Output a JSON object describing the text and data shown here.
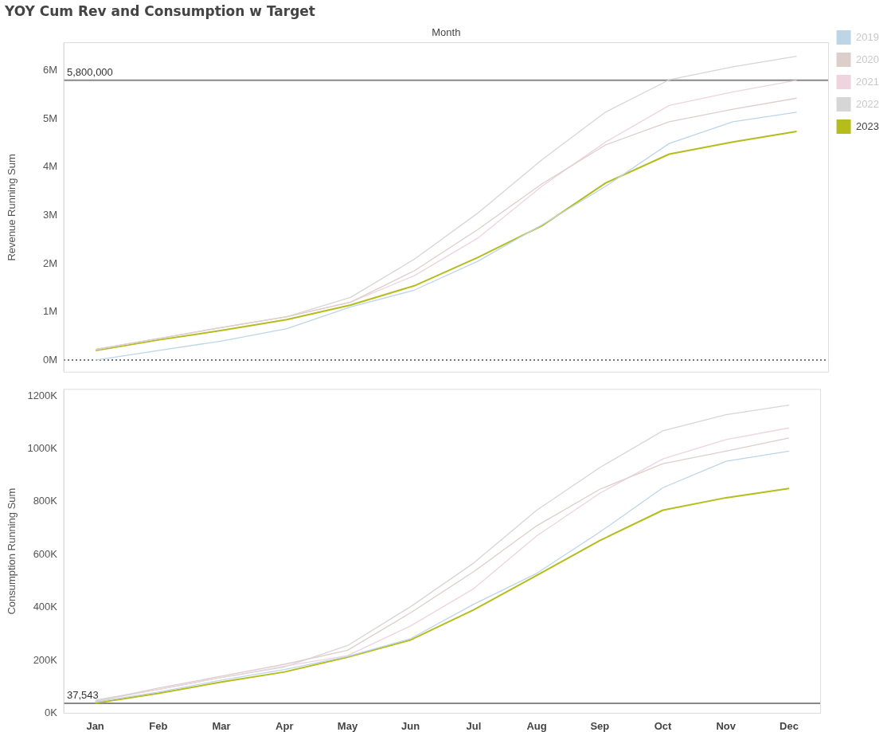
{
  "chart_data": [
    {
      "type": "line",
      "title": "YOY Cum Rev and Consumption w Target",
      "xlabel": "Month",
      "ylabel": "Revenue Running Sum",
      "categories": [
        null,
        null,
        null,
        null,
        null,
        null,
        null,
        null,
        null,
        null,
        null,
        null
      ],
      "series": [
        {
          "name": "2019",
          "color": "#bcd6e8",
          "values": [
            0,
            200000,
            400000,
            650000,
            1100000,
            1450000,
            2050000,
            2800000,
            3600000,
            4490000,
            4940000,
            5140000
          ]
        },
        {
          "name": "2020",
          "color": "#dccfcb",
          "values": [
            220000,
            450000,
            680000,
            900000,
            1200000,
            1850000,
            2710000,
            3650000,
            4460000,
            4940000,
            5200000,
            5430000
          ]
        },
        {
          "name": "2021",
          "color": "#efd3df",
          "values": [
            220000,
            450000,
            680000,
            900000,
            1200000,
            1750000,
            2530000,
            3600000,
            4520000,
            5280000,
            5560000,
            5800000
          ]
        },
        {
          "name": "2022",
          "color": "#d6d6d6",
          "values": [
            220000,
            450000,
            680000,
            900000,
            1300000,
            2090000,
            3050000,
            4150000,
            5140000,
            5810000,
            6080000,
            6300000
          ]
        },
        {
          "name": "2023",
          "color": "#b5bd1c",
          "values": [
            200000,
            420000,
            620000,
            840000,
            1140000,
            1540000,
            2130000,
            2780000,
            3670000,
            4270000,
            4520000,
            4740000
          ]
        }
      ],
      "ylim": [
        -250000,
        6580000
      ],
      "yticks": [
        {
          "value": 0,
          "label": "0M"
        },
        {
          "value": 1000000,
          "label": "1M"
        },
        {
          "value": 2000000,
          "label": "2M"
        },
        {
          "value": 3000000,
          "label": "3M"
        },
        {
          "value": 4000000,
          "label": "4M"
        },
        {
          "value": 5000000,
          "label": "5M"
        },
        {
          "value": 6000000,
          "label": "6M"
        }
      ],
      "ref_lines": [
        {
          "axis": "y",
          "value": 5800000,
          "label": "5,800,000",
          "color": "#888888",
          "line_style": "solid"
        },
        {
          "axis": "y",
          "value": 0,
          "label": null,
          "color": "#777777",
          "line_style": "dotted"
        }
      ],
      "legend": "top right",
      "tick_labels": "y",
      "marker": "none",
      "line_style": "solid"
    },
    {
      "type": "line",
      "ylabel": "Consumption Running Sum",
      "categories": [
        "Jan",
        "Feb",
        "Mar",
        "Apr",
        "May",
        "Jun",
        "Jul",
        "Aug",
        "Sep",
        "Oct",
        "Nov",
        "Dec"
      ],
      "series": [
        {
          "color": "#bcd6e8",
          "values": [
            42000,
            80000,
            125000,
            165000,
            215000,
            282000,
            412000,
            529000,
            685000,
            853000,
            953000,
            991000
          ]
        },
        {
          "color": "#dccfcb",
          "values": [
            45000,
            95000,
            140000,
            185000,
            238000,
            380000,
            535000,
            709000,
            847000,
            944000,
            991000,
            1041000
          ]
        },
        {
          "color": "#efd3df",
          "values": [
            45000,
            90000,
            135000,
            178000,
            218000,
            330000,
            471000,
            671000,
            832000,
            962000,
            1035000,
            1079000
          ]
        },
        {
          "color": "#d6d6d6",
          "values": [
            50000,
            90000,
            135000,
            175000,
            256000,
            403000,
            568000,
            768000,
            929000,
            1068000,
            1129000,
            1165000
          ]
        },
        {
          "color": "#b5bd1c",
          "values": [
            38000,
            75000,
            118000,
            156000,
            212000,
            277000,
            391000,
            521000,
            653000,
            768000,
            815000,
            850000
          ]
        }
      ],
      "ylim": [
        0,
        1225000
      ],
      "yticks": [
        {
          "value": 0,
          "label": "0K"
        },
        {
          "value": 200000,
          "label": "200K"
        },
        {
          "value": 400000,
          "label": "400K"
        },
        {
          "value": 600000,
          "label": "600K"
        },
        {
          "value": 800000,
          "label": "800K"
        },
        {
          "value": 1000000,
          "label": "1000K"
        },
        {
          "value": 1200000,
          "label": "1200K"
        }
      ],
      "ref_lines": [
        {
          "axis": "y",
          "value": 37543,
          "label": "37,543",
          "color": "#888888",
          "line_style": "solid"
        }
      ],
      "legend": false,
      "marker": "none",
      "line_style": "solid"
    }
  ]
}
